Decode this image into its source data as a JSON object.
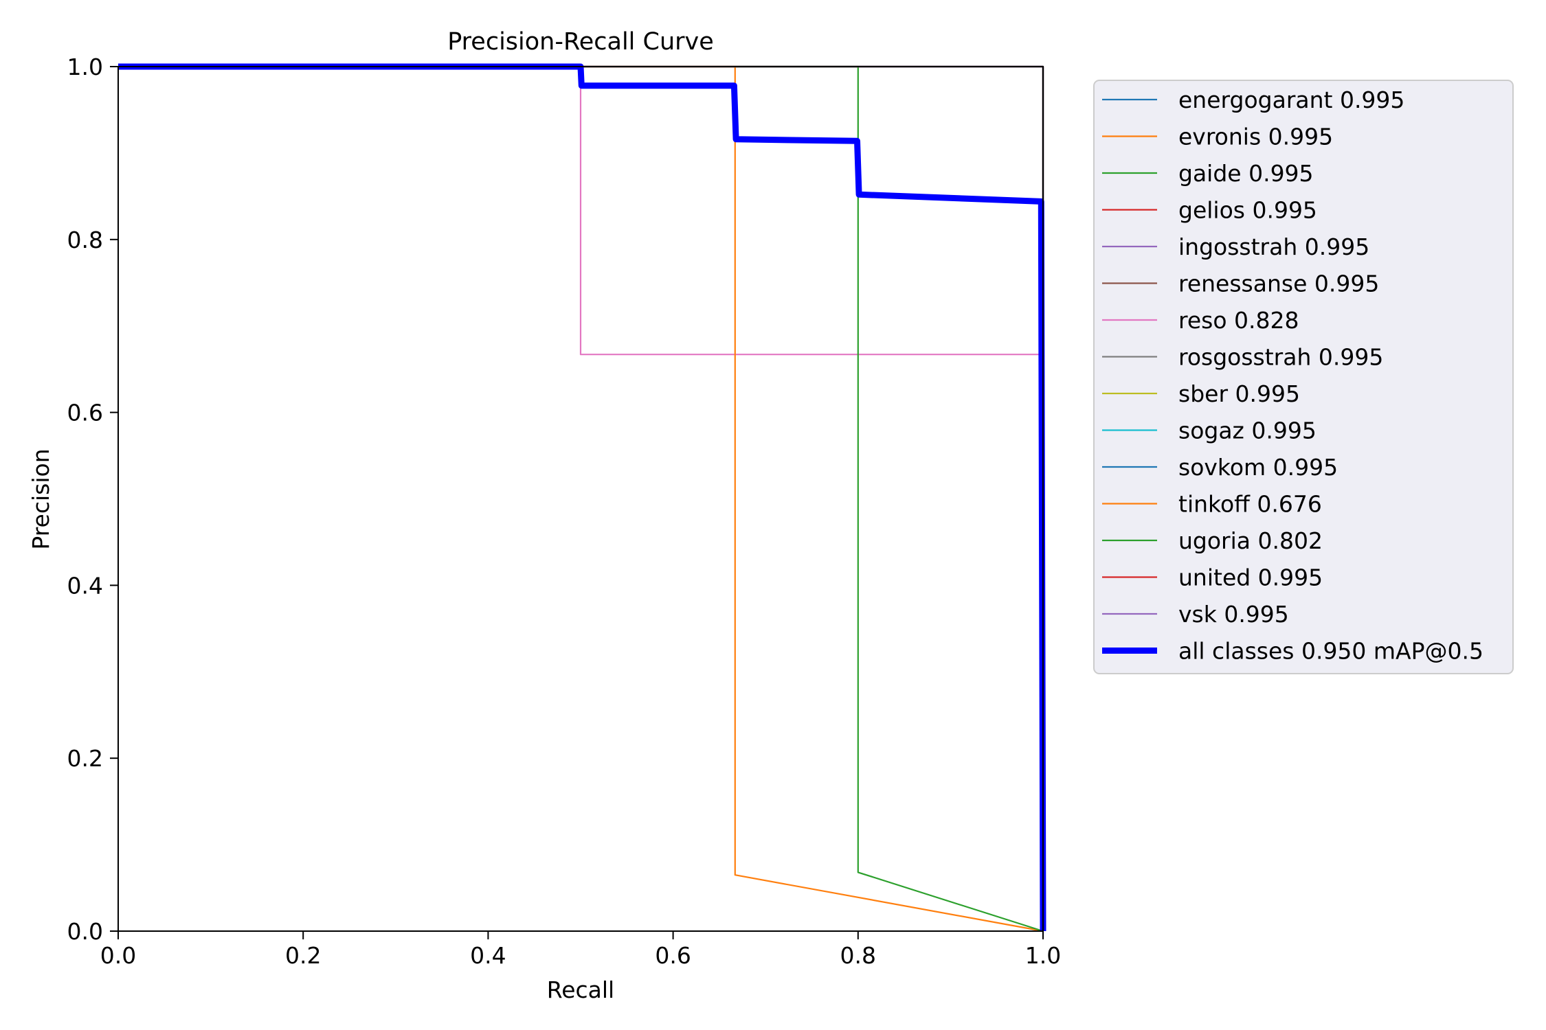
{
  "chart_data": {
    "type": "line",
    "title": "Precision-Recall Curve",
    "xlabel": "Recall",
    "ylabel": "Precision",
    "xlim": [
      0,
      1
    ],
    "ylim": [
      0,
      1
    ],
    "xticks": [
      "0.0",
      "0.2",
      "0.4",
      "0.6",
      "0.8",
      "1.0"
    ],
    "yticks": [
      "0.0",
      "0.2",
      "0.4",
      "0.6",
      "0.8",
      "1.0"
    ],
    "grid": false,
    "legend_position": "outside-right",
    "series": [
      {
        "name": "energogarant 0.995",
        "color": "#1f77b4",
        "thick": false,
        "points": [
          [
            0,
            1
          ],
          [
            1,
            1
          ],
          [
            1,
            0
          ]
        ]
      },
      {
        "name": "evronis 0.995",
        "color": "#ff7f0e",
        "thick": false,
        "points": [
          [
            0,
            1
          ],
          [
            1,
            1
          ],
          [
            1,
            0
          ]
        ]
      },
      {
        "name": "gaide 0.995",
        "color": "#2ca02c",
        "thick": false,
        "points": [
          [
            0,
            1
          ],
          [
            1,
            1
          ],
          [
            1,
            0
          ]
        ]
      },
      {
        "name": "gelios 0.995",
        "color": "#d62728",
        "thick": false,
        "points": [
          [
            0,
            1
          ],
          [
            1,
            1
          ],
          [
            1,
            0
          ]
        ]
      },
      {
        "name": "ingosstrah 0.995",
        "color": "#9467bd",
        "thick": false,
        "points": [
          [
            0,
            1
          ],
          [
            1,
            1
          ],
          [
            1,
            0
          ]
        ]
      },
      {
        "name": "renessanse 0.995",
        "color": "#8c564b",
        "thick": false,
        "points": [
          [
            0,
            1
          ],
          [
            1,
            1
          ],
          [
            1,
            0
          ]
        ]
      },
      {
        "name": "reso 0.828",
        "color": "#e377c2",
        "thick": false,
        "points": [
          [
            0,
            1
          ],
          [
            0.5,
            1
          ],
          [
            0.5,
            0.667
          ],
          [
            0.999,
            0.667
          ],
          [
            1,
            0
          ]
        ]
      },
      {
        "name": "rosgosstrah 0.995",
        "color": "#7f7f7f",
        "thick": false,
        "points": [
          [
            0,
            1
          ],
          [
            1,
            1
          ],
          [
            1,
            0
          ]
        ]
      },
      {
        "name": "sber 0.995",
        "color": "#bcbd22",
        "thick": false,
        "points": [
          [
            0,
            1
          ],
          [
            1,
            1
          ],
          [
            1,
            0
          ]
        ]
      },
      {
        "name": "sogaz 0.995",
        "color": "#17becf",
        "thick": false,
        "points": [
          [
            0,
            1
          ],
          [
            1,
            1
          ],
          [
            1,
            0
          ]
        ]
      },
      {
        "name": "sovkom 0.995",
        "color": "#1f77b4",
        "thick": false,
        "points": [
          [
            0,
            1
          ],
          [
            1,
            1
          ],
          [
            1,
            0
          ]
        ]
      },
      {
        "name": "tinkoff 0.676",
        "color": "#ff7f0e",
        "thick": false,
        "points": [
          [
            0,
            1
          ],
          [
            0.667,
            1
          ],
          [
            0.667,
            0.065
          ],
          [
            1,
            0
          ]
        ]
      },
      {
        "name": "ugoria 0.802",
        "color": "#2ca02c",
        "thick": false,
        "points": [
          [
            0,
            1
          ],
          [
            0.8,
            1
          ],
          [
            0.8,
            0.068
          ],
          [
            1,
            0
          ]
        ]
      },
      {
        "name": "united 0.995",
        "color": "#d62728",
        "thick": false,
        "points": [
          [
            0,
            1
          ],
          [
            1,
            1
          ],
          [
            1,
            0
          ]
        ]
      },
      {
        "name": "vsk 0.995",
        "color": "#9467bd",
        "thick": false,
        "points": [
          [
            0,
            1
          ],
          [
            1,
            1
          ],
          [
            1,
            0
          ]
        ]
      },
      {
        "name": "all classes 0.950 mAP@0.5",
        "color": "#0000ff",
        "thick": true,
        "points": [
          [
            0,
            1
          ],
          [
            0.5,
            1
          ],
          [
            0.501,
            0.978
          ],
          [
            0.666,
            0.978
          ],
          [
            0.668,
            0.916
          ],
          [
            0.799,
            0.914
          ],
          [
            0.801,
            0.852
          ],
          [
            0.998,
            0.844
          ],
          [
            1,
            0
          ]
        ]
      }
    ]
  }
}
